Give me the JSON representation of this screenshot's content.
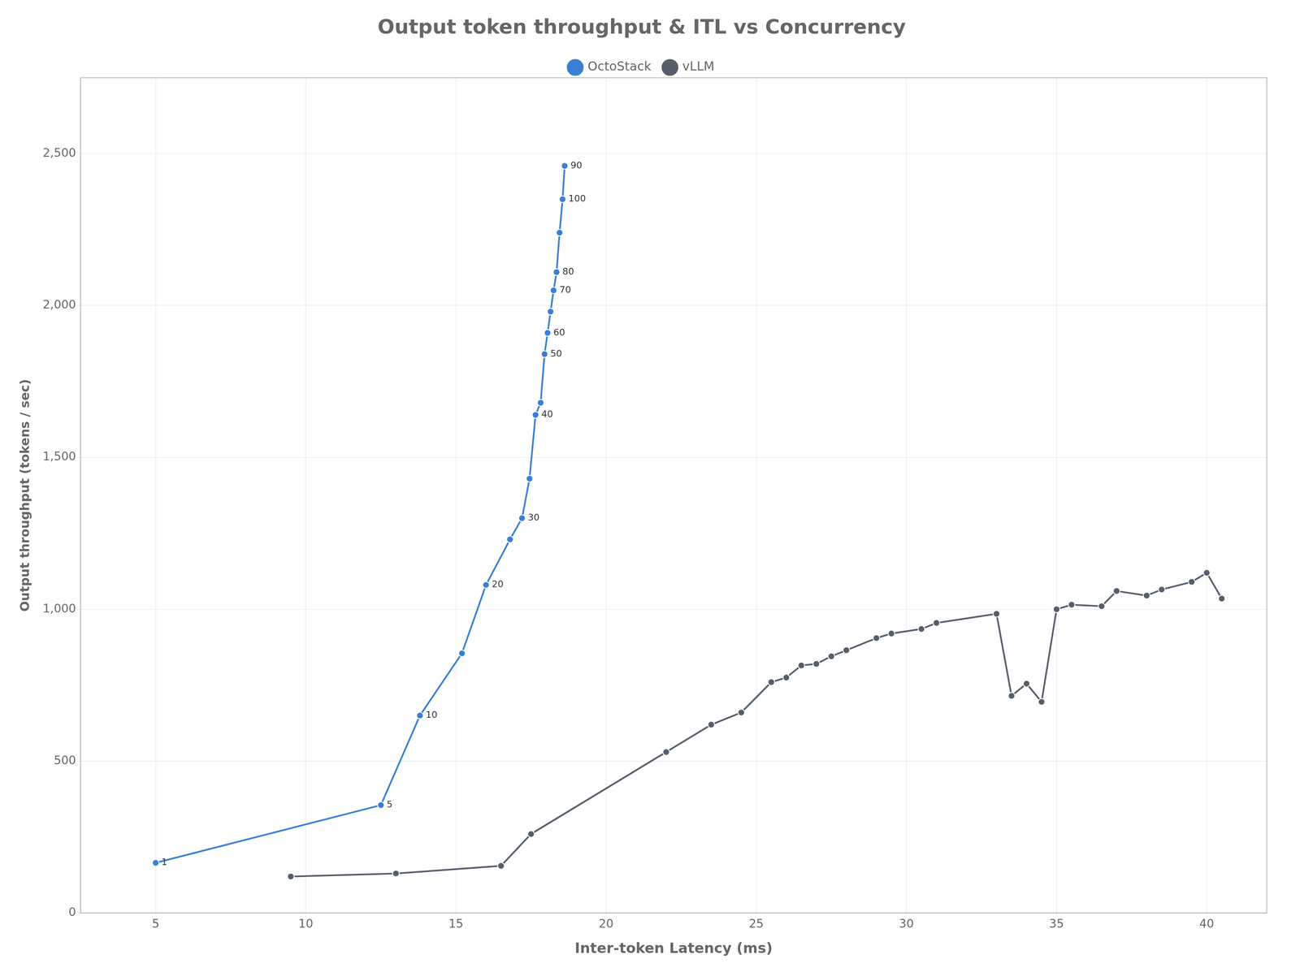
{
  "chart_data": {
    "type": "line",
    "title": "Output token throughput & ITL vs Concurrency",
    "xlabel": "Inter-token Latency (ms)",
    "ylabel": "Output throughput (tokens / sec)",
    "series": [
      {
        "name": "OctoStack",
        "color": "#3a7fd4",
        "x": [
          5.0,
          12.5,
          13.8,
          15.2,
          16.0,
          16.8,
          17.2,
          17.45,
          17.65,
          17.82,
          17.95,
          18.05,
          18.15,
          18.25,
          18.35,
          18.45,
          18.55,
          18.62
        ],
        "values": [
          165,
          355,
          650,
          855,
          1080,
          1230,
          1300,
          1430,
          1640,
          1680,
          1840,
          1910,
          1980,
          2050,
          2110,
          2240,
          2350,
          2460
        ]
      },
      {
        "name": "vLLM",
        "color": "#555f6b",
        "x": [
          9.5,
          13.0,
          16.5,
          17.5,
          22.0,
          23.5,
          24.5,
          25.5,
          26.0,
          26.5,
          27.0,
          27.5,
          28.0,
          29.0,
          29.5,
          30.5,
          31.0,
          33.0,
          33.5,
          34.0,
          34.5,
          35.0,
          35.5,
          36.5,
          37.0,
          38.0,
          38.5,
          39.5,
          40.0,
          40.5
        ],
        "values": [
          120,
          130,
          155,
          260,
          530,
          620,
          660,
          760,
          775,
          815,
          820,
          845,
          865,
          905,
          920,
          935,
          955,
          985,
          715,
          755,
          695,
          1000,
          1015,
          1010,
          1060,
          1045,
          1065,
          1090,
          1120,
          1035
        ]
      }
    ],
    "annotations": [
      {
        "x": 5.0,
        "y": 165,
        "text": "1"
      },
      {
        "x": 12.5,
        "y": 355,
        "text": "5"
      },
      {
        "x": 13.8,
        "y": 650,
        "text": "10"
      },
      {
        "x": 16.0,
        "y": 1080,
        "text": "20"
      },
      {
        "x": 17.2,
        "y": 1300,
        "text": "30"
      },
      {
        "x": 17.65,
        "y": 1640,
        "text": "40"
      },
      {
        "x": 17.95,
        "y": 1840,
        "text": "50"
      },
      {
        "x": 18.05,
        "y": 1910,
        "text": "60"
      },
      {
        "x": 18.25,
        "y": 2050,
        "text": "70"
      },
      {
        "x": 18.35,
        "y": 2110,
        "text": "80"
      },
      {
        "x": 18.55,
        "y": 2350,
        "text": "100"
      },
      {
        "x": 18.62,
        "y": 2460,
        "text": "90"
      }
    ],
    "xlim": [
      2.5,
      42
    ],
    "ylim": [
      0,
      2750
    ],
    "xticks": [
      5,
      10,
      15,
      20,
      25,
      30,
      35,
      40
    ],
    "yticks": [
      0,
      500,
      {
        "value": 1000,
        "label": "1,000"
      },
      {
        "value": 1500,
        "label": "1,500"
      },
      {
        "value": 2000,
        "label": "2,000"
      },
      {
        "value": 2500,
        "label": "2,500"
      }
    ],
    "grid": true,
    "legend": "top"
  }
}
